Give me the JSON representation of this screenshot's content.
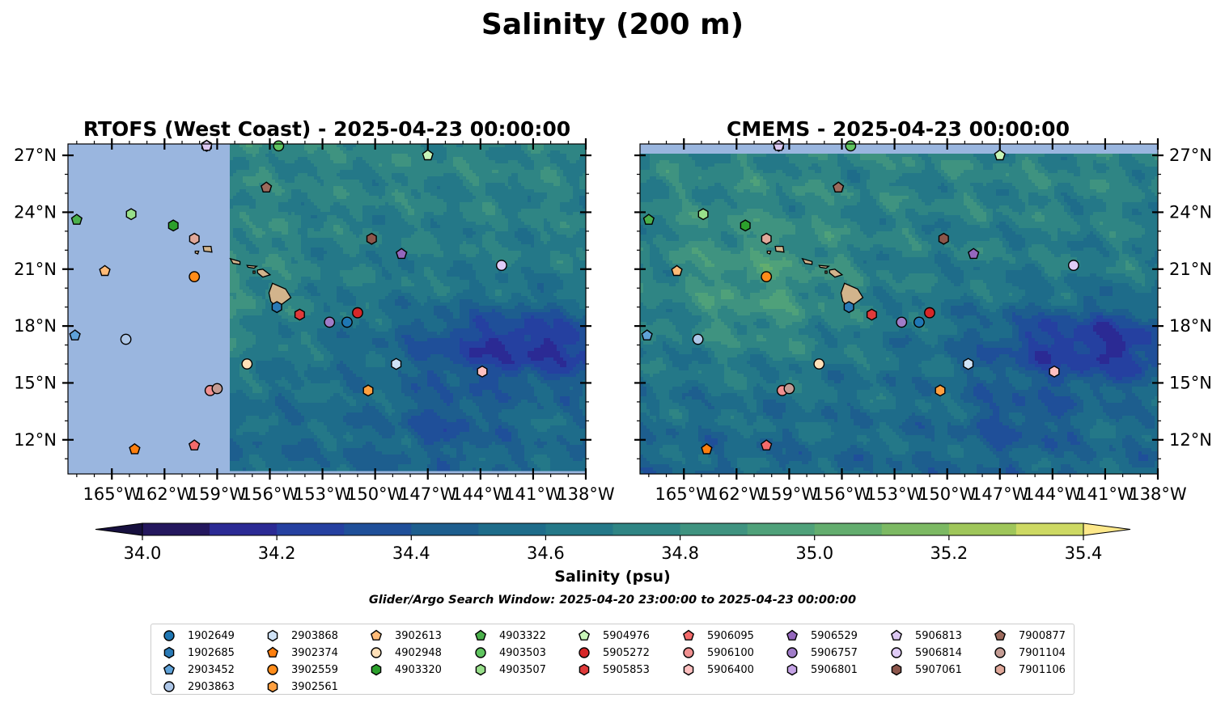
{
  "chart_data": {
    "type": "heatmap",
    "title": "Salinity (200 m)",
    "colorbar": {
      "label": "Salinity (psu)",
      "ticks": [
        34.0,
        34.2,
        34.4,
        34.6,
        34.8,
        35.0,
        35.2,
        35.4
      ],
      "tick_labels": [
        "34.0",
        "34.2",
        "34.4",
        "34.6",
        "34.8",
        "35.0",
        "35.2",
        "35.4"
      ],
      "range": [
        34.0,
        35.4
      ],
      "extend": "both",
      "levels": [
        34.0,
        34.1,
        34.2,
        34.3,
        34.4,
        34.5,
        34.6,
        34.7,
        34.8,
        34.9,
        35.0,
        35.1,
        35.2,
        35.3,
        35.4
      ],
      "colors": [
        "#24175e",
        "#2b2a94",
        "#2540a0",
        "#1f4f99",
        "#1d5e8e",
        "#1e6c8a",
        "#247888",
        "#2f8584",
        "#3f9380",
        "#4fa17a",
        "#63ad6e",
        "#7cb963",
        "#9fc65a",
        "#cdd963"
      ],
      "under_color": "#17103f",
      "over_color": "#fde88a"
    },
    "subtitle": "Glider/Argo Search Window: 2025-04-20 23:00:00 to 2025-04-23 00:00:00",
    "panels": [
      {
        "title": "RTOFS (West Coast) - 2025-04-23 00:00:00",
        "yaxis_side": "left"
      },
      {
        "title": "CMEMS - 2025-04-23 00:00:00",
        "yaxis_side": "right"
      }
    ],
    "x_range": [
      -167.5,
      -138
    ],
    "y_range": [
      10.2,
      27.6
    ],
    "x_ticks": [
      -165,
      -162,
      -159,
      -156,
      -153,
      -150,
      -147,
      -144,
      -141,
      -138
    ],
    "x_tick_labels": [
      "165°W",
      "162°W",
      "159°W",
      "156°W",
      "153°W",
      "150°W",
      "147°W",
      "144°W",
      "141°W",
      "138°W"
    ],
    "y_ticks": [
      12,
      15,
      18,
      21,
      24,
      27
    ],
    "y_tick_labels": [
      "12°N",
      "15°N",
      "18°N",
      "21°N",
      "24°N",
      "27°N"
    ],
    "rtofs_domain_west_lon": -158.2,
    "cmems_domain_north_lat": 27.1,
    "no_data_color": "#9ab6df",
    "land_color": "#d2b48c",
    "floats": [
      {
        "id": "1902649",
        "marker": "circle",
        "color": "#1f77b4",
        "lon": -151.6,
        "lat": 18.2
      },
      {
        "id": "1902685",
        "marker": "hexagon",
        "color": "#2a7ab6",
        "lon": -155.6,
        "lat": 19.0
      },
      {
        "id": "2903452",
        "marker": "pentagon",
        "color": "#5fa2d8",
        "lon": -167.1,
        "lat": 17.5
      },
      {
        "id": "2903863",
        "marker": "circle",
        "color": "#aec7e8",
        "lon": -164.2,
        "lat": 17.3
      },
      {
        "id": "2903868",
        "marker": "hexagon",
        "color": "#cfe2f6",
        "lon": -148.8,
        "lat": 16.0
      },
      {
        "id": "3902374",
        "marker": "pentagon",
        "color": "#ff7f0e",
        "lon": -163.7,
        "lat": 11.5
      },
      {
        "id": "3902559",
        "marker": "circle",
        "color": "#ff8c1a",
        "lon": -160.3,
        "lat": 20.6
      },
      {
        "id": "3902561",
        "marker": "hexagon",
        "color": "#ffa040",
        "lon": -150.4,
        "lat": 14.6
      },
      {
        "id": "3902613",
        "marker": "pentagon",
        "color": "#ffbb78",
        "lon": -165.4,
        "lat": 20.9
      },
      {
        "id": "4902948",
        "marker": "circle",
        "color": "#ffe0b8",
        "lon": -157.3,
        "lat": 16.0
      },
      {
        "id": "4903322",
        "marker": "pentagon",
        "color": "#4bb04b",
        "lon": -167.0,
        "lat": 23.6
      },
      {
        "id": "4903503",
        "marker": "circle",
        "color": "#5fc45f",
        "lon": -155.5,
        "lat": 27.5
      },
      {
        "id": "4903320",
        "marker": "hexagon",
        "color": "#2ca02c",
        "lon": -161.5,
        "lat": 23.3
      },
      {
        "id": "4903507",
        "marker": "hexagon",
        "color": "#98df8a",
        "lon": -163.9,
        "lat": 23.9
      },
      {
        "id": "5904976",
        "marker": "pentagon",
        "color": "#c8f5b8",
        "lon": -147.0,
        "lat": 27.0
      },
      {
        "id": "5905272",
        "marker": "circle",
        "color": "#d62728",
        "lon": -151.0,
        "lat": 18.7
      },
      {
        "id": "5905853",
        "marker": "hexagon",
        "color": "#e03a3a",
        "lon": -154.3,
        "lat": 18.6
      },
      {
        "id": "5906095",
        "marker": "pentagon",
        "color": "#f46b6b",
        "lon": -160.3,
        "lat": 11.7
      },
      {
        "id": "5906100",
        "marker": "circle",
        "color": "#f09090",
        "lon": -159.4,
        "lat": 14.6
      },
      {
        "id": "5906400",
        "marker": "hexagon",
        "color": "#ffc0c0",
        "lon": -143.9,
        "lat": 15.6
      },
      {
        "id": "5906529",
        "marker": "pentagon",
        "color": "#9467bd",
        "lon": -148.5,
        "lat": 21.8
      },
      {
        "id": "5906757",
        "marker": "circle",
        "color": "#a07cc8",
        "lon": -152.6,
        "lat": 18.2
      },
      {
        "id": "5906801",
        "marker": "hexagon",
        "color": "#c5a3e6",
        "lon": -159.6,
        "lat": 27.5
      },
      {
        "id": "5906813",
        "marker": "pentagon",
        "color": "#dcc8f2",
        "lon": -159.6,
        "lat": 27.5
      },
      {
        "id": "5906814",
        "marker": "circle",
        "color": "#e0ccf8",
        "lon": -142.8,
        "lat": 21.2
      },
      {
        "id": "5907061",
        "marker": "hexagon",
        "color": "#8c564b",
        "lon": -150.2,
        "lat": 22.6
      },
      {
        "id": "7900877",
        "marker": "pentagon",
        "color": "#9c6a5c",
        "lon": -156.2,
        "lat": 25.3
      },
      {
        "id": "7901104",
        "marker": "circle",
        "color": "#c49c94",
        "lon": -159.0,
        "lat": 14.7
      },
      {
        "id": "7901106",
        "marker": "hexagon",
        "color": "#e0a89a",
        "lon": -160.3,
        "lat": 22.6
      }
    ]
  }
}
